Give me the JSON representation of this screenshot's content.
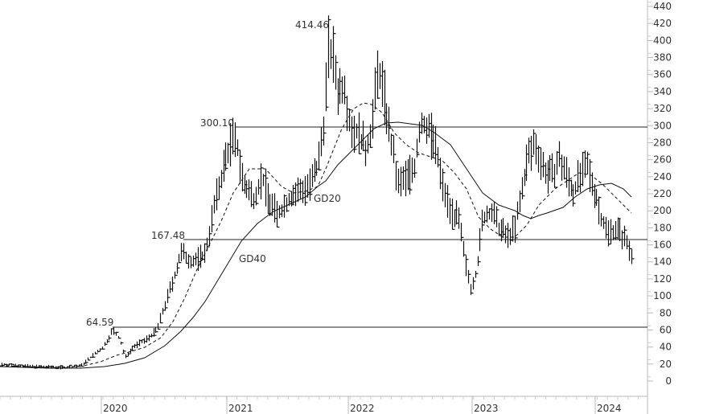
{
  "chart_data": {
    "type": "line",
    "subtype": "ohlc-bar-with-moving-averages",
    "title": "",
    "xlabel": "",
    "ylabel": "",
    "ylim": [
      0,
      440
    ],
    "y_ticks": [
      0,
      20,
      40,
      60,
      80,
      100,
      120,
      140,
      160,
      180,
      200,
      220,
      240,
      260,
      280,
      300,
      320,
      340,
      360,
      380,
      400,
      420,
      440
    ],
    "x_ticks": [
      "2020",
      "2021",
      "2022",
      "2023",
      "2024"
    ],
    "grid": false,
    "legend": "none (inline labels)",
    "horizontal_levels": [
      {
        "value": 64.59,
        "label": "64.59"
      },
      {
        "value": 167.48,
        "label": "167.48"
      },
      {
        "value": 300.1,
        "label": "300.10"
      }
    ],
    "peak_annotation": {
      "value": 414.46,
      "label": "414.46"
    },
    "series": [
      {
        "name": "Price (weekly high-low bars)",
        "style": "bars",
        "x": [
          "2019.0",
          "2019.5",
          "2019.9",
          "2020.0",
          "2020.1",
          "2020.2",
          "2020.4",
          "2020.5",
          "2020.6",
          "2020.7",
          "2020.85",
          "2020.95",
          "2021.0",
          "2021.1",
          "2021.25",
          "2021.4",
          "2021.55",
          "2021.7",
          "2021.75",
          "2021.85",
          "2021.9",
          "2022.05",
          "2022.15",
          "2022.3",
          "2022.45",
          "2022.55",
          "2022.7",
          "2022.85",
          "2022.9",
          "2023.0",
          "2023.1",
          "2023.25",
          "2023.35",
          "2023.5",
          "2023.6",
          "2023.75",
          "2023.9",
          "2024.0",
          "2024.1",
          "2024.2"
        ],
        "values": [
          20,
          18,
          17,
          35,
          60,
          30,
          55,
          75,
          140,
          150,
          230,
          290,
          270,
          220,
          240,
          195,
          215,
          260,
          300,
          390,
          360,
          320,
          300,
          370,
          230,
          295,
          300,
          200,
          175,
          110,
          190,
          160,
          250,
          290,
          240,
          270,
          230,
          250,
          170,
          150
        ]
      },
      {
        "name": "GD20",
        "style": "dashed",
        "label_position": "near 2021.6"
      },
      {
        "name": "GD40",
        "style": "solid",
        "label_position": "near 2021.0"
      }
    ]
  },
  "labels": {
    "gd20": "GD20",
    "gd40": "GD40",
    "level_300": "300.10",
    "level_167": "167.48",
    "level_64": "64.59",
    "peak": "414.46"
  },
  "axis": {
    "y": [
      "440",
      "420",
      "400",
      "380",
      "360",
      "340",
      "320",
      "300",
      "280",
      "260",
      "240",
      "220",
      "200",
      "180",
      "160",
      "140",
      "120",
      "100",
      "80",
      "60",
      "40",
      "20",
      "0"
    ],
    "x": [
      "2020",
      "2021",
      "2022",
      "2023",
      "2024"
    ]
  }
}
